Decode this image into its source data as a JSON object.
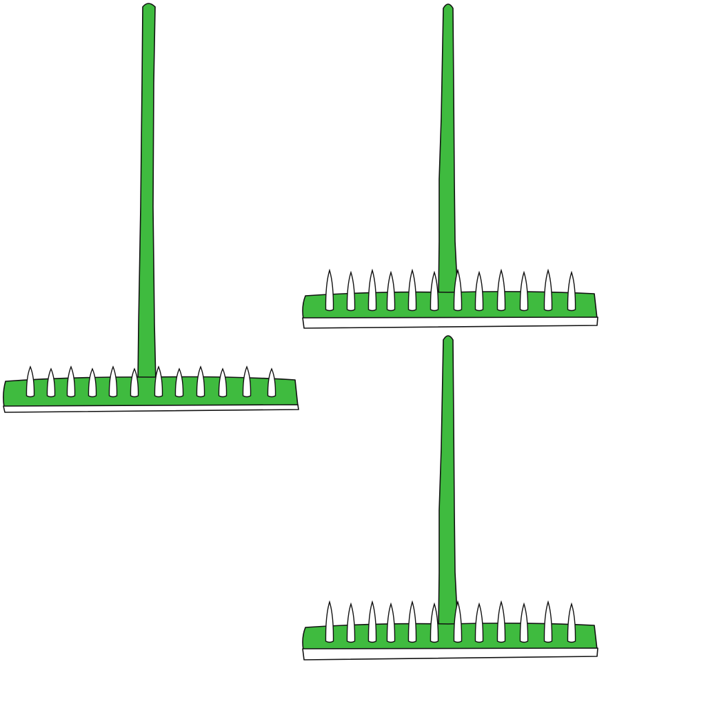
{
  "scene": {
    "background": "#ffffff",
    "object": "garden rake",
    "count": 3,
    "tines_per_rake": 12,
    "colors": {
      "fill": "#3fbb3f",
      "outline": "#111111",
      "tine": "#ffffff"
    },
    "rakes": [
      {
        "name": "rake-left"
      },
      {
        "name": "rake-top-right"
      },
      {
        "name": "rake-bottom-right"
      }
    ]
  }
}
